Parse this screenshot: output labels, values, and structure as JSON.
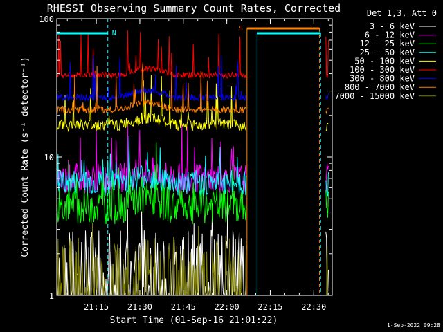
{
  "chart_data": {
    "type": "line",
    "title": "RHESSI Observing Summary Count Rates, Corrected",
    "xlabel": "Start Time (01-Sep-16 21:01:22)",
    "ylabel": "Corrected Count Rate (s⁻¹ detector⁻¹)",
    "yscale": "log",
    "ylim": [
      1,
      100
    ],
    "xlim_minutes": [
      0,
      95
    ],
    "x_ticks": [
      {
        "label": "21:15",
        "minute": 13.63
      },
      {
        "label": "21:30",
        "minute": 28.63
      },
      {
        "label": "21:45",
        "minute": 43.63
      },
      {
        "label": "22:00",
        "minute": 58.63
      },
      {
        "label": "22:15",
        "minute": 73.63
      },
      {
        "label": "22:30",
        "minute": 88.63
      }
    ],
    "y_ticks": [
      {
        "label": "1",
        "value": 1
      },
      {
        "label": "10",
        "value": 10
      },
      {
        "label": "100",
        "value": 100
      }
    ],
    "legend_header": "Det 1,3, Att 0",
    "legend_position": "right",
    "series": [
      {
        "name": "3 - 6 keV",
        "color": "#ffffff",
        "base": 1.5,
        "noise": 0.7,
        "spikes": 1.6,
        "missing": true
      },
      {
        "name": "6 - 12 keV",
        "color": "#ff00ff",
        "base": 7.0,
        "noise": 0.25,
        "spikes": 1.5,
        "missing": false
      },
      {
        "name": "12 - 25 keV",
        "color": "#00ff00",
        "base": 4.4,
        "noise": 0.3,
        "spikes": 1.0,
        "missing": false
      },
      {
        "name": "25 - 50 keV",
        "color": "#00ffff",
        "base": 6.5,
        "noise": 0.22,
        "spikes": 1.5,
        "missing": false
      },
      {
        "name": "50 - 100 keV",
        "color": "#ffff00",
        "base": 17.0,
        "noise": 0.1,
        "spikes": 1.2,
        "missing": false
      },
      {
        "name": "100 - 300 keV",
        "color": "#ff0000",
        "base": 39.0,
        "noise": 0.05,
        "spikes": 1.1,
        "missing": false
      },
      {
        "name": "300 - 800 keV",
        "color": "#0000ff",
        "base": 27.0,
        "noise": 0.06,
        "spikes": 1.15,
        "missing": false
      },
      {
        "name": "800 - 7000 keV",
        "color": "#ff7f00",
        "base": 22.0,
        "noise": 0.06,
        "spikes": 1.1,
        "missing": false
      },
      {
        "name": "7000 - 15000 keV",
        "color": "#808000",
        "base": 1.3,
        "noise": 0.7,
        "spikes": 1.5,
        "missing": true
      }
    ],
    "annotations": [
      {
        "label": "N",
        "color": "#00ffff",
        "start_min": 0,
        "end_min": 17.6,
        "kind": "night"
      },
      {
        "label": "S",
        "color": "#ff7f00",
        "start_min": 65.6,
        "end_min": 90.6,
        "kind": "saa"
      }
    ],
    "data_gap_minutes": [
      65.4,
      92.8
    ]
  },
  "timestamp": "1-Sep-2022 09:28"
}
